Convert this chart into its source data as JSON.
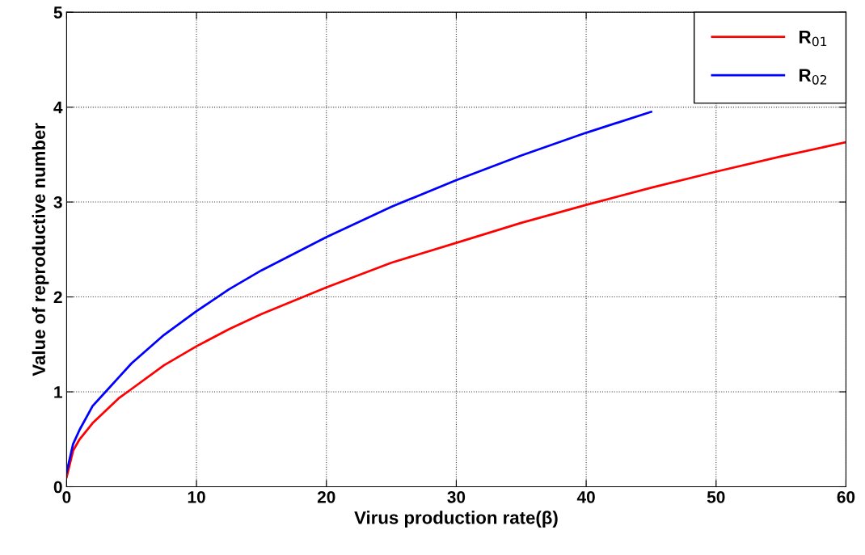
{
  "chart_data": {
    "type": "line",
    "xlabel": "Virus production rate(β)",
    "ylabel": "Value of reproductive number",
    "x": [
      0,
      0.5,
      1,
      2,
      3,
      4,
      5,
      7.5,
      10,
      12.5,
      15,
      20,
      25,
      30,
      35,
      40,
      45,
      50,
      55,
      60
    ],
    "series": [
      {
        "name": "R$_{01}$",
        "color": "#ff0000",
        "values": [
          0.1,
          0.38,
          0.5,
          0.67,
          0.8,
          0.93,
          1.03,
          1.28,
          1.48,
          1.66,
          1.82,
          2.1,
          2.36,
          2.57,
          2.78,
          2.97,
          3.15,
          3.32,
          3.48,
          3.63
        ]
      },
      {
        "name": "R$_{02}$",
        "color": "#0000ff",
        "values": [
          0.15,
          0.45,
          0.6,
          0.85,
          1.0,
          1.15,
          1.3,
          1.6,
          1.85,
          2.08,
          2.28,
          2.63,
          2.95,
          3.23,
          3.49,
          3.73,
          3.95,
          null,
          null,
          null
        ]
      }
    ],
    "xlim": [
      0,
      60
    ],
    "xticks": [
      0,
      10,
      20,
      30,
      40,
      50,
      60
    ],
    "ylim": [
      0,
      5
    ],
    "yticks": [
      0,
      1,
      2,
      3,
      4,
      5
    ],
    "grid": true,
    "legend": "top right",
    "line_style": "solid",
    "marker": "none"
  }
}
